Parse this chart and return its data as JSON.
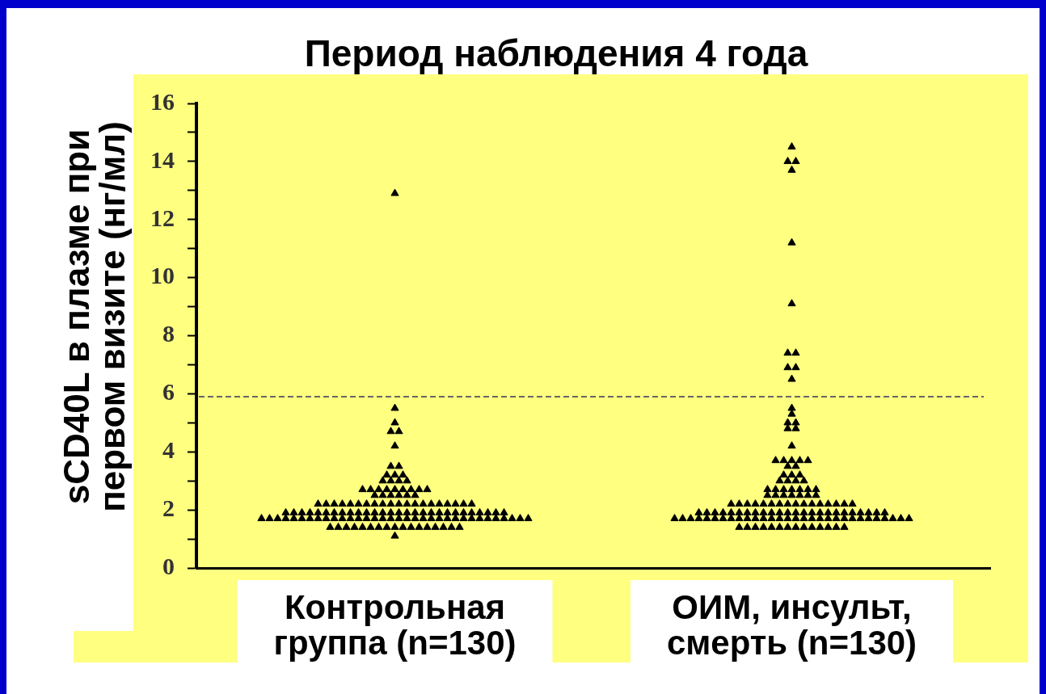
{
  "chart_data": {
    "type": "scatter",
    "title": "Период наблюдения 4 года",
    "ylabel": "sCD40L в плазме при первом визите (нг/мл)",
    "categories": [
      "Контрольная группа (n=130)",
      "ОИМ, инсульт, смерть (n=130)"
    ],
    "series": [
      {
        "color": "#000000",
        "x": [
          "Контрольная группа (n=130)",
          "Контрольная группа (n=130)",
          "Контрольная группа (n=130)",
          "Контрольная группа (n=130)",
          "Контрольная группа (n=130)",
          "Контрольная группа (n=130)",
          "Контрольная группа (n=130)",
          "Контрольная группа (n=130)",
          "Контрольная группа (n=130)",
          "Контрольная группа (n=130)",
          "Контрольная группа (n=130)",
          "Контрольная группа (n=130)",
          "Контрольная группа (n=130)",
          "Контрольная группа (n=130)",
          "Контрольная группа (n=130)",
          "Контрольная группа (n=130)",
          "Контрольная группа (n=130)",
          "Контрольная группа (n=130)",
          "Контрольная группа (n=130)",
          "Контрольная группа (n=130)",
          "Контрольная группа (n=130)",
          "Контрольная группа (n=130)",
          "Контрольная группа (n=130)",
          "Контрольная группа (n=130)",
          "Контрольная группа (n=130)",
          "Контрольная группа (n=130)",
          "Контрольная группа (n=130)",
          "Контрольная группа (n=130)",
          "Контрольная группа (n=130)",
          "Контрольная группа (n=130)",
          "Контрольная группа (n=130)",
          "Контрольная группа (n=130)",
          "Контрольная группа (n=130)",
          "Контрольная группа (n=130)",
          "Контрольная группа (n=130)",
          "Контрольная группа (n=130)",
          "Контрольная группа (n=130)",
          "Контрольная группа (n=130)",
          "Контрольная группа (n=130)",
          "Контрольная группа (n=130)",
          "Контрольная группа (n=130)",
          "Контрольная группа (n=130)",
          "Контрольная группа (n=130)",
          "Контрольная группа (n=130)",
          "Контрольная группа (n=130)",
          "Контрольная группа (n=130)",
          "Контрольная группа (n=130)",
          "Контрольная группа (n=130)",
          "Контрольная группа (n=130)",
          "Контрольная группа (n=130)",
          "Контрольная группа (n=130)",
          "Контрольная группа (n=130)",
          "Контрольная группа (n=130)",
          "Контрольная группа (n=130)",
          "Контрольная группа (n=130)",
          "Контрольная группа (n=130)",
          "Контрольная группа (n=130)",
          "Контрольная группа (n=130)",
          "Контрольная группа (n=130)",
          "Контрольная группа (n=130)",
          "Контрольная группа (n=130)",
          "Контрольная группа (n=130)",
          "Контрольная группа (n=130)",
          "Контрольная группа (n=130)",
          "Контрольная группа (n=130)",
          "Контрольная группа (n=130)",
          "Контрольная группа (n=130)",
          "Контрольная группа (n=130)",
          "Контрольная группа (n=130)",
          "Контрольная группа (n=130)",
          "Контрольная группа (n=130)",
          "Контрольная группа (n=130)",
          "Контрольная группа (n=130)",
          "Контрольная группа (n=130)",
          "Контрольная группа (n=130)",
          "Контрольная группа (n=130)",
          "Контрольная группа (n=130)",
          "Контрольная группа (n=130)",
          "Контрольная группа (n=130)",
          "Контрольная группа (n=130)",
          "Контрольная группа (n=130)",
          "Контрольная группа (n=130)",
          "Контрольная группа (n=130)",
          "Контрольная группа (n=130)",
          "Контрольная группа (n=130)",
          "Контрольная группа (n=130)",
          "Контрольная группа (n=130)",
          "Контрольная группа (n=130)",
          "Контрольная группа (n=130)",
          "Контрольная группа (n=130)",
          "Контрольная группа (n=130)",
          "Контрольная группа (n=130)",
          "Контрольная группа (n=130)",
          "Контрольная группа (n=130)",
          "Контрольная группа (n=130)",
          "Контрольная группа (n=130)",
          "Контрольная группа (n=130)",
          "Контрольная группа (n=130)",
          "Контрольная группа (n=130)",
          "Контрольная группа (n=130)",
          "Контрольная группа (n=130)",
          "Контрольная группа (n=130)",
          "Контрольная группа (n=130)",
          "Контрольная группа (n=130)",
          "Контрольная группа (n=130)",
          "Контрольная группа (n=130)",
          "Контрольная группа (n=130)",
          "Контрольная группа (n=130)",
          "Контрольная группа (n=130)",
          "Контрольная группа (n=130)",
          "Контрольная группа (n=130)",
          "Контрольная группа (n=130)",
          "Контрольная группа (n=130)",
          "Контрольная группа (n=130)",
          "Контрольная группа (n=130)",
          "Контрольная группа (n=130)",
          "Контрольная группа (n=130)",
          "Контрольная группа (n=130)",
          "Контрольная группа (n=130)",
          "Контрольная группа (n=130)",
          "Контрольная группа (n=130)",
          "Контрольная группа (n=130)",
          "Контрольная группа (n=130)",
          "Контрольная группа (n=130)",
          "Контрольная группа (n=130)",
          "Контрольная группа (n=130)",
          "Контрольная группа (n=130)",
          "Контрольная группа (n=130)",
          "Контрольная группа (n=130)",
          "Контрольная группа (n=130)",
          "ОИМ, инсульт, смерть (n=130)",
          "ОИМ, инсульт, смерть (n=130)",
          "ОИМ, инсульт, смерть (n=130)",
          "ОИМ, инсульт, смерть (n=130)",
          "ОИМ, инсульт, смерть (n=130)",
          "ОИМ, инсульт, смерть (n=130)",
          "ОИМ, инсульт, смерть (n=130)",
          "ОИМ, инсульт, смерть (n=130)",
          "ОИМ, инсульт, смерть (n=130)",
          "ОИМ, инсульт, смерть (n=130)",
          "ОИМ, инсульт, смерть (n=130)",
          "ОИМ, инсульт, смерть (n=130)",
          "ОИМ, инсульт, смерть (n=130)",
          "ОИМ, инсульт, смерть (n=130)",
          "ОИМ, инсульт, смерть (n=130)",
          "ОИМ, инсульт, смерть (n=130)",
          "ОИМ, инсульт, смерть (n=130)",
          "ОИМ, инсульт, смерть (n=130)",
          "ОИМ, инсульт, смерть (n=130)",
          "ОИМ, инсульт, смерть (n=130)",
          "ОИМ, инсульт, смерть (n=130)",
          "ОИМ, инсульт, смерть (n=130)",
          "ОИМ, инсульт, смерть (n=130)",
          "ОИМ, инсульт, смерть (n=130)",
          "ОИМ, инсульт, смерть (n=130)",
          "ОИМ, инсульт, смерть (n=130)",
          "ОИМ, инсульт, смерть (n=130)",
          "ОИМ, инсульт, смерть (n=130)",
          "ОИМ, инсульт, смерть (n=130)",
          "ОИМ, инсульт, смерть (n=130)",
          "ОИМ, инсульт, смерть (n=130)",
          "ОИМ, инсульт, смерть (n=130)",
          "ОИМ, инсульт, смерть (n=130)",
          "ОИМ, инсульт, смерть (n=130)",
          "ОИМ, инсульт, смерть (n=130)",
          "ОИМ, инсульт, смерть (n=130)",
          "ОИМ, инсульт, смерть (n=130)",
          "ОИМ, инсульт, смерть (n=130)",
          "ОИМ, инсульт, смерть (n=130)",
          "ОИМ, инсульт, смерть (n=130)",
          "ОИМ, инсульт, смерть (n=130)",
          "ОИМ, инсульт, смерть (n=130)",
          "ОИМ, инсульт, смерть (n=130)",
          "ОИМ, инсульт, смерть (n=130)",
          "ОИМ, инсульт, смерть (n=130)",
          "ОИМ, инсульт, смерть (n=130)",
          "ОИМ, инсульт, смерть (n=130)",
          "ОИМ, инсульт, смерть (n=130)",
          "ОИМ, инсульт, смерть (n=130)",
          "ОИМ, инсульт, смерть (n=130)",
          "ОИМ, инсульт, смерть (n=130)",
          "ОИМ, инсульт, смерть (n=130)",
          "ОИМ, инсульт, смерть (n=130)",
          "ОИМ, инсульт, смерть (n=130)",
          "ОИМ, инсульт, смерть (n=130)",
          "ОИМ, инсульт, смерть (n=130)",
          "ОИМ, инсульт, смерть (n=130)",
          "ОИМ, инсульт, смерть (n=130)",
          "ОИМ, инсульт, смерть (n=130)",
          "ОИМ, инсульт, смерть (n=130)",
          "ОИМ, инсульт, смерть (n=130)",
          "ОИМ, инсульт, смерть (n=130)",
          "ОИМ, инсульт, смерть (n=130)",
          "ОИМ, инсульт, смерть (n=130)",
          "ОИМ, инсульт, смерть (n=130)",
          "ОИМ, инсульт, смерть (n=130)",
          "ОИМ, инсульт, смерть (n=130)",
          "ОИМ, инсульт, смерть (n=130)",
          "ОИМ, инсульт, смерть (n=130)",
          "ОИМ, инсульт, смерть (n=130)",
          "ОИМ, инсульт, смерть (n=130)",
          "ОИМ, инсульт, смерть (n=130)",
          "ОИМ, инсульт, смерть (n=130)",
          "ОИМ, инсульт, смерть (n=130)",
          "ОИМ, инсульт, смерть (n=130)",
          "ОИМ, инсульт, смерть (n=130)",
          "ОИМ, инсульт, смерть (n=130)",
          "ОИМ, инсульт, смерть (n=130)",
          "ОИМ, инсульт, смерть (n=130)",
          "ОИМ, инсульт, смерть (n=130)",
          "ОИМ, инсульт, смерть (n=130)",
          "ОИМ, инсульт, смерть (n=130)",
          "ОИМ, инсульт, смерть (n=130)",
          "ОИМ, инсульт, смерть (n=130)",
          "ОИМ, инсульт, смерть (n=130)",
          "ОИМ, инсульт, смерть (n=130)",
          "ОИМ, инсульт, смерть (n=130)",
          "ОИМ, инсульт, смерть (n=130)",
          "ОИМ, инсульт, смерть (n=130)",
          "ОИМ, инсульт, смерть (n=130)",
          "ОИМ, инсульт, смерть (n=130)",
          "ОИМ, инсульт, смерть (n=130)",
          "ОИМ, инсульт, смерть (n=130)",
          "ОИМ, инсульт, смерть (n=130)",
          "ОИМ, инсульт, смерть (n=130)",
          "ОИМ, инсульт, смерть (n=130)",
          "ОИМ, инсульт, смерть (n=130)",
          "ОИМ, инсульт, смерть (n=130)",
          "ОИМ, инсульт, смерть (n=130)",
          "ОИМ, инсульт, смерть (n=130)",
          "ОИМ, инсульт, смерть (n=130)",
          "ОИМ, инсульт, смерть (n=130)",
          "ОИМ, инсульт, смерть (n=130)",
          "ОИМ, инсульт, смерть (n=130)",
          "ОИМ, инсульт, смерть (n=130)",
          "ОИМ, инсульт, смерть (n=130)",
          "ОИМ, инсульт, смерть (n=130)",
          "ОИМ, инсульт, смерть (n=130)",
          "ОИМ, инсульт, смерть (n=130)",
          "ОИМ, инсульт, смерть (n=130)",
          "ОИМ, инсульт, смерть (n=130)",
          "ОИМ, инсульт, смерть (n=130)",
          "ОИМ, инсульт, смерть (n=130)",
          "ОИМ, инсульт, смерть (n=130)",
          "ОИМ, инсульт, смерть (n=130)",
          "ОИМ, инсульт, смерть (n=130)",
          "ОИМ, инсульт, смерть (n=130)",
          "ОИМ, инсульт, смерть (n=130)",
          "ОИМ, инсульт, смерть (n=130)",
          "ОИМ, инсульт, смерть (n=130)",
          "ОИМ, инсульт, смерть (n=130)",
          "ОИМ, инсульт, смерть (n=130)",
          "ОИМ, инсульт, смерть (n=130)",
          "ОИМ, инсульт, смерть (n=130)",
          "ОИМ, инсульт, смерть (n=130)",
          "ОИМ, инсульт, смерть (n=130)",
          "ОИМ, инсульт, смерть (n=130)",
          "ОИМ, инсульт, смерть (n=130)",
          "ОИМ, инсульт, смерть (n=130)",
          "ОИМ, инсульт, смерть (n=130)"
        ],
        "values": [
          12.9,
          5.5,
          5,
          4.7,
          4.7,
          4.2,
          3.5,
          3.5,
          3.2,
          3.2,
          3.2,
          3,
          3,
          3,
          3,
          2.7,
          2.7,
          2.7,
          2.7,
          2.7,
          2.7,
          2.7,
          2.7,
          2.7,
          2.5,
          2.5,
          2.5,
          2.5,
          2.5,
          2.5,
          2.2,
          2.2,
          2.2,
          2.2,
          2.2,
          2.2,
          2.2,
          2.2,
          2.2,
          2.2,
          2.2,
          2.2,
          2.2,
          2.2,
          2.2,
          2.2,
          2.2,
          2.2,
          2.2,
          2.2,
          1.9,
          1.9,
          1.9,
          1.9,
          1.9,
          1.9,
          1.9,
          1.9,
          1.9,
          1.9,
          1.9,
          1.9,
          1.9,
          1.9,
          1.9,
          1.9,
          1.9,
          1.9,
          1.9,
          1.9,
          1.9,
          1.9,
          1.9,
          1.9,
          1.9,
          1.9,
          1.9,
          1.9,
          1.7,
          1.7,
          1.7,
          1.7,
          1.7,
          1.7,
          1.7,
          1.7,
          1.7,
          1.7,
          1.7,
          1.7,
          1.7,
          1.7,
          1.7,
          1.7,
          1.7,
          1.7,
          1.7,
          1.7,
          1.7,
          1.7,
          1.7,
          1.7,
          1.7,
          1.7,
          1.7,
          1.7,
          1.7,
          1.7,
          1.7,
          1.7,
          1.7,
          1.7,
          1.4,
          1.4,
          1.4,
          1.4,
          1.4,
          1.4,
          1.4,
          1.4,
          1.4,
          1.4,
          1.4,
          1.4,
          1.4,
          1.4,
          1.4,
          1.4,
          1.4,
          1.1,
          14.5,
          14,
          14,
          13.7,
          11.2,
          9.1,
          7.4,
          7.4,
          6.9,
          6.9,
          6.5,
          5.5,
          5.3,
          5,
          5,
          4.8,
          4.8,
          4.2,
          3.7,
          3.7,
          3.7,
          3.7,
          3.7,
          3.5,
          3.5,
          3.2,
          3.2,
          3.2,
          3,
          3,
          3,
          3,
          2.7,
          2.7,
          2.7,
          2.7,
          2.7,
          2.7,
          2.7,
          2.5,
          2.5,
          2.5,
          2.5,
          2.5,
          2.5,
          2.5,
          2.2,
          2.2,
          2.2,
          2.2,
          2.2,
          2.2,
          2.2,
          2.2,
          2.2,
          2.2,
          2.2,
          2.2,
          2.2,
          2.2,
          2.2,
          2.2,
          1.9,
          1.9,
          1.9,
          1.9,
          1.9,
          1.9,
          1.9,
          1.9,
          1.9,
          1.9,
          1.9,
          1.9,
          1.9,
          1.9,
          1.9,
          1.9,
          1.9,
          1.9,
          1.9,
          1.9,
          1.9,
          1.9,
          1.9,
          1.9,
          1.7,
          1.7,
          1.7,
          1.7,
          1.7,
          1.7,
          1.7,
          1.7,
          1.7,
          1.7,
          1.7,
          1.7,
          1.7,
          1.7,
          1.7,
          1.7,
          1.7,
          1.7,
          1.7,
          1.7,
          1.7,
          1.7,
          1.7,
          1.7,
          1.7,
          1.7,
          1.7,
          1.7,
          1.7,
          1.7,
          1.4,
          1.4,
          1.4,
          1.4,
          1.4,
          1.4,
          1.4,
          1.4,
          1.4,
          1.4,
          1.4,
          1.4,
          1.4,
          1.4
        ]
      }
    ],
    "ylim": [
      0,
      16
    ],
    "yticks": [
      0,
      {
        "value": 1,
        "label": null
      },
      2,
      {
        "value": 3,
        "label": null
      },
      4,
      {
        "value": 5,
        "label": null
      },
      6,
      {
        "value": 7,
        "label": null
      },
      8,
      {
        "value": 9,
        "label": null
      },
      10,
      {
        "value": 11,
        "label": null
      },
      12,
      {
        "value": 13,
        "label": null
      },
      14,
      {
        "value": 15,
        "label": null
      },
      16
    ],
    "ref_lines": [
      {
        "axis": "y",
        "value": 5.9,
        "color": "#666666",
        "line_style": "dashed"
      }
    ],
    "marker": "triangle"
  }
}
